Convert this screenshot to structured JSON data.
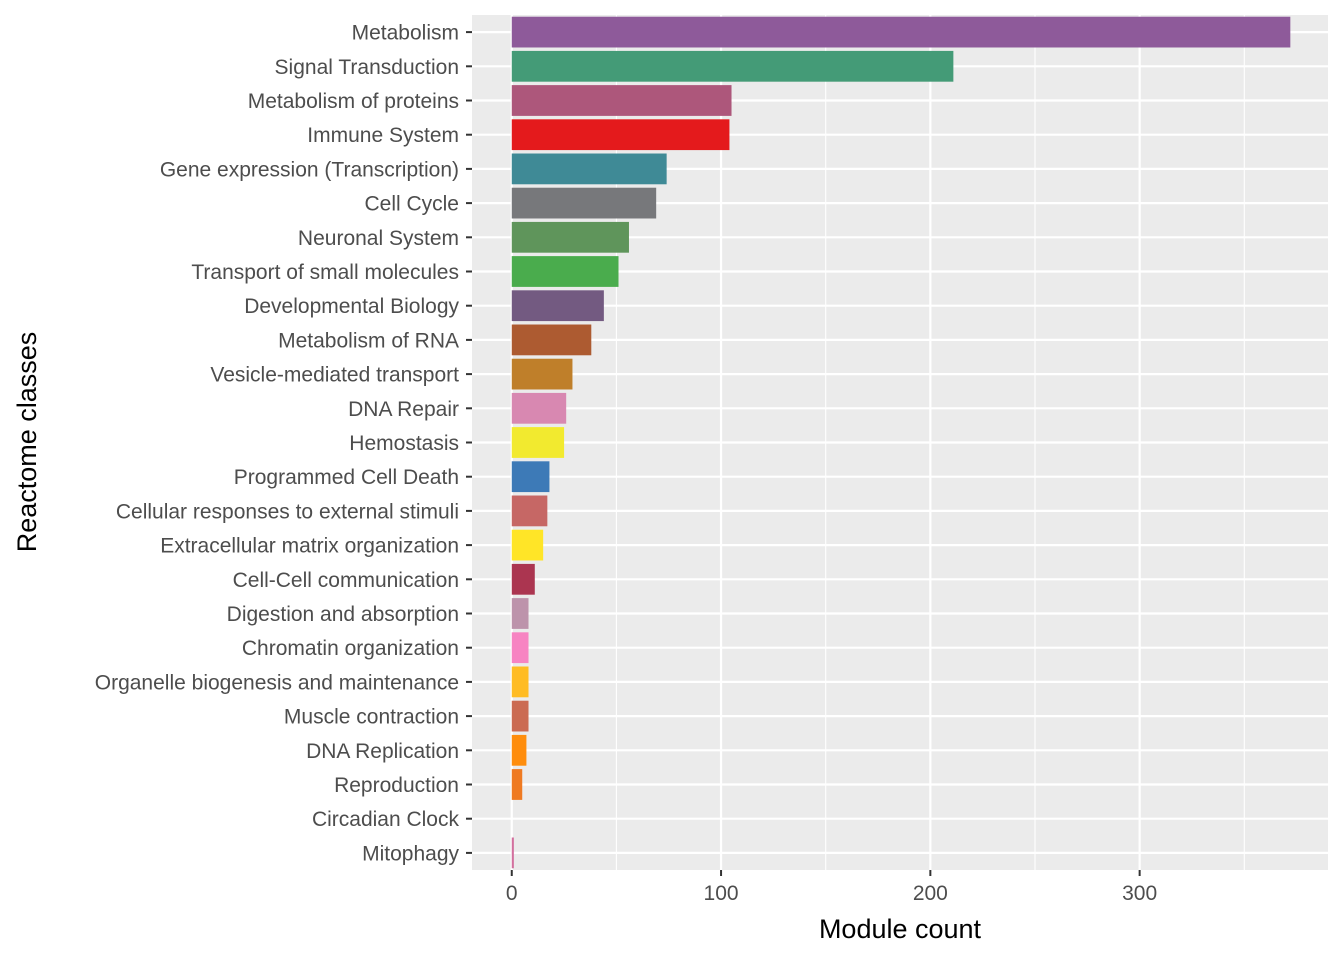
{
  "chart_data": {
    "type": "bar",
    "orientation": "horizontal",
    "xlabel": "Module count",
    "ylabel": "Reactome classes",
    "xlim": [
      -19,
      390
    ],
    "x_ticks": [
      0,
      100,
      200,
      300
    ],
    "grid": true,
    "panel_background": "#ebebeb",
    "categories": [
      "Metabolism",
      "Signal Transduction",
      "Metabolism of proteins",
      "Immune System",
      "Gene expression (Transcription)",
      "Cell Cycle",
      "Neuronal System",
      "Transport of small molecules",
      "Developmental Biology",
      "Metabolism of RNA",
      "Vesicle-mediated transport",
      "DNA Repair",
      "Hemostasis",
      "Programmed Cell Death",
      "Cellular responses to external stimuli",
      "Extracellular matrix organization",
      "Cell-Cell communication",
      "Digestion and absorption",
      "Chromatin organization",
      "Organelle biogenesis and maintenance",
      "Muscle contraction",
      "DNA Replication",
      "Reproduction",
      "Circadian Clock",
      "Mitophagy"
    ],
    "values": [
      372,
      211,
      105,
      104,
      74,
      69,
      56,
      51,
      44,
      38,
      29,
      26,
      25,
      18,
      17,
      15,
      11,
      8,
      8,
      8,
      8,
      7,
      5,
      0,
      1
    ],
    "colors": [
      "#8e5a9a",
      "#449b77",
      "#ad577b",
      "#e41a1c",
      "#3f8a96",
      "#77787b",
      "#5f955b",
      "#4aac4d",
      "#735a81",
      "#ad5b31",
      "#bf7f2a",
      "#d888b1",
      "#f2ea2f",
      "#3d7ab7",
      "#c66765",
      "#ffe527",
      "#ab3550",
      "#bd93ab",
      "#f784c2",
      "#ffbc23",
      "#cb6b52",
      "#ff8d0c",
      "#ef7a21",
      "#b59b6a",
      "#d3709e"
    ]
  }
}
